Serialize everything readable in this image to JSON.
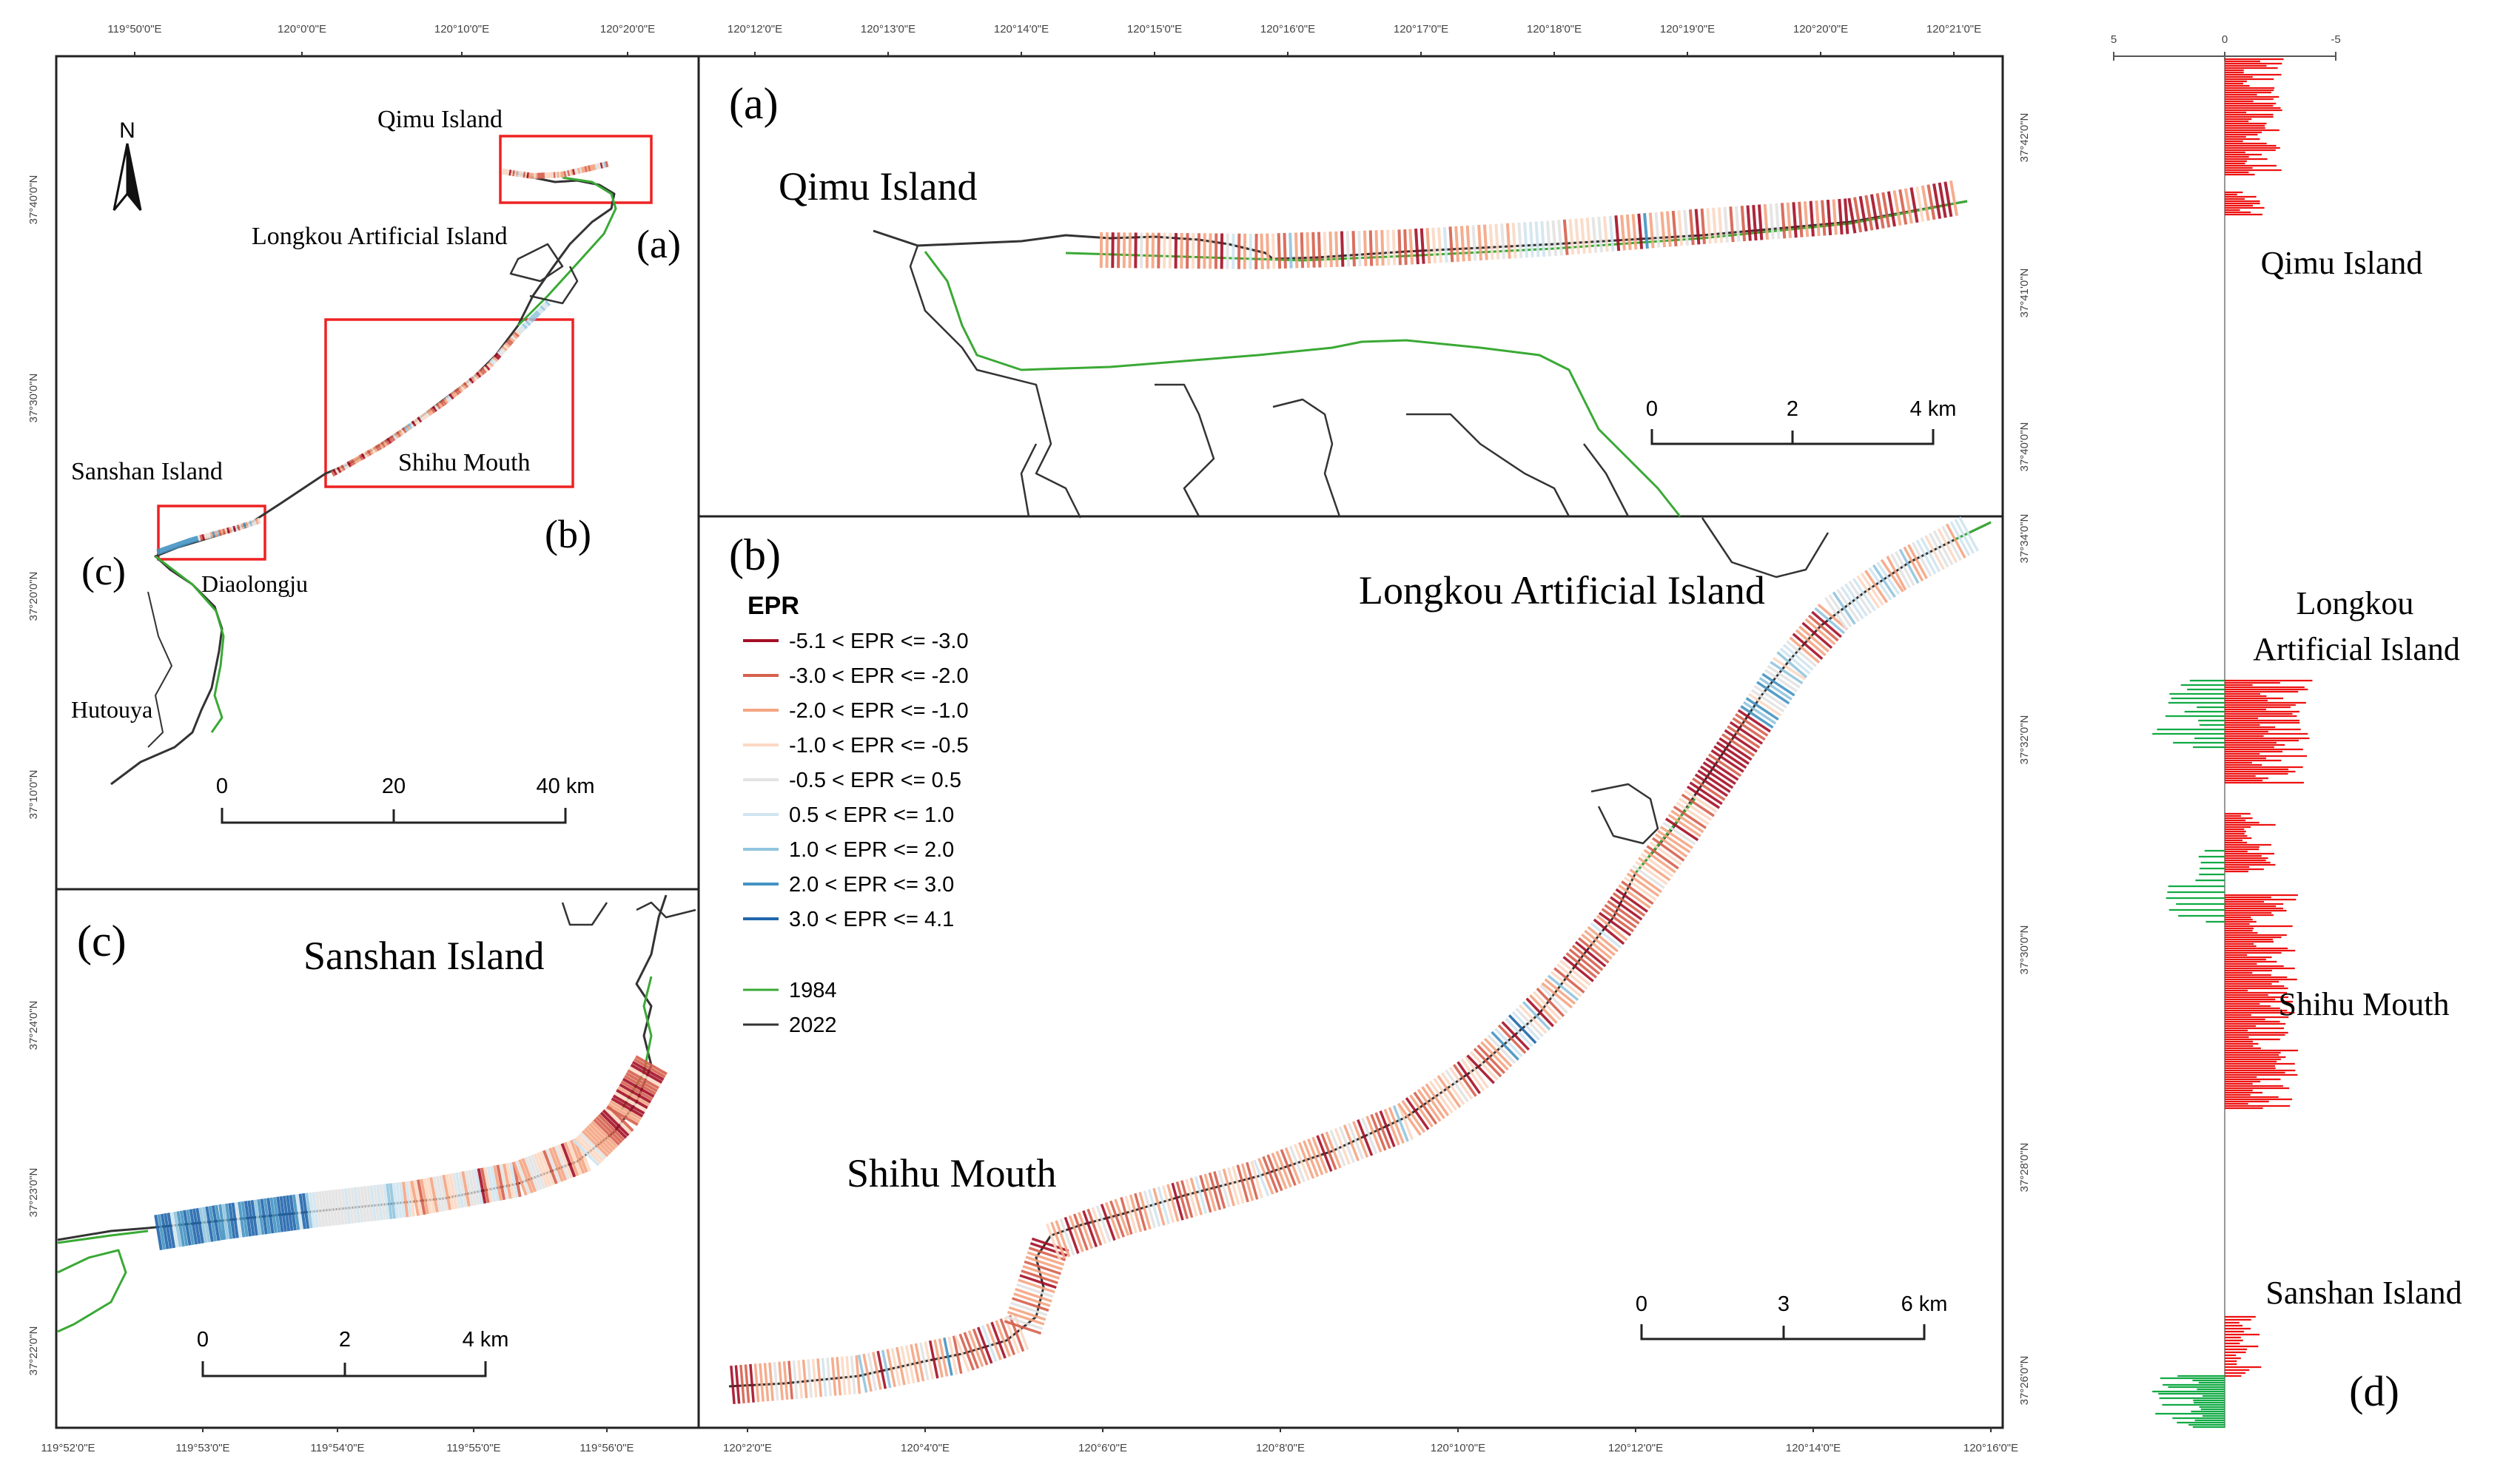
{
  "overview": {
    "panel_labels": {
      "a": "(a)",
      "b": "(b)",
      "c": "(c)"
    },
    "places": {
      "qimu": "Qimu Island",
      "longkou": "Longkou Artificial Island",
      "sanshan": "Sanshan Island",
      "shihu": "Shihu Mouth",
      "diaolongju": "Diaolongju",
      "hutouya": "Hutouya"
    },
    "north_label": "N",
    "scale": {
      "t0": "0",
      "t1": "20",
      "t2": "40 km"
    },
    "top_ticks": [
      "119°50'0\"E",
      "120°0'0\"E",
      "120°10'0\"E",
      "120°20'0\"E"
    ],
    "left_ticks": [
      "37°40'0\"N",
      "37°30'0\"N",
      "37°20'0\"N",
      "37°10'0\"N"
    ]
  },
  "panel_a": {
    "label": "(a)",
    "title": "Qimu Island",
    "scale": {
      "t0": "0",
      "t1": "2",
      "t2": "4 km"
    },
    "top_ticks": [
      "120°12'0\"E",
      "120°13'0\"E",
      "120°14'0\"E",
      "120°15'0\"E",
      "120°16'0\"E",
      "120°17'0\"E",
      "120°18'0\"E",
      "120°19'0\"E",
      "120°20'0\"E",
      "120°21'0\"E"
    ],
    "right_ticks": [
      "37°42'0\"N",
      "37°41'0\"N",
      "37°40'0\"N"
    ]
  },
  "panel_b": {
    "label": "(b)",
    "title_longkou": "Longkou Artificial Island",
    "title_shihu": "Shihu Mouth",
    "scale": {
      "t0": "0",
      "t1": "3",
      "t2": "6 km"
    },
    "bottom_ticks": [
      "120°2'0\"E",
      "120°4'0\"E",
      "120°6'0\"E",
      "120°8'0\"E",
      "120°10'0\"E",
      "120°12'0\"E",
      "120°14'0\"E",
      "120°16'0\"E"
    ],
    "right_ticks": [
      "37°34'0\"N",
      "37°32'0\"N",
      "37°30'0\"N",
      "37°28'0\"N",
      "37°26'0\"N"
    ]
  },
  "panel_c": {
    "label": "(c)",
    "title": "Sanshan Island",
    "scale": {
      "t0": "0",
      "t1": "2",
      "t2": "4 km"
    },
    "bottom_ticks": [
      "119°52'0\"E",
      "119°53'0\"E",
      "119°54'0\"E",
      "119°55'0\"E",
      "119°56'0\"E"
    ],
    "left_ticks": [
      "37°24'0\"N",
      "37°23'0\"N",
      "37°22'0\"N"
    ]
  },
  "legend": {
    "title": "EPR",
    "classes": [
      {
        "label": "-5.1 < EPR <= -3.0",
        "color": "#a50f26"
      },
      {
        "label": "-3.0 < EPR <= -2.0",
        "color": "#d6604d"
      },
      {
        "label": "-2.0 < EPR <= -1.0",
        "color": "#f4a582"
      },
      {
        "label": "-1.0 < EPR <= -0.5",
        "color": "#fbd9c4"
      },
      {
        "label": "-0.5 < EPR <= 0.5",
        "color": "#e3e3e3"
      },
      {
        "label": "0.5 < EPR <= 1.0",
        "color": "#d1e5f0"
      },
      {
        "label": "1.0 < EPR <= 2.0",
        "color": "#92c5de"
      },
      {
        "label": "2.0 < EPR <= 3.0",
        "color": "#4393c3"
      },
      {
        "label": "3.0 < EPR <= 4.1",
        "color": "#2166ac"
      }
    ],
    "lines": [
      {
        "label": "1984",
        "color": "#3aa935"
      },
      {
        "label": "2022",
        "color": "#333333"
      }
    ]
  },
  "panel_d": {
    "label": "(d)",
    "axis_ticks": [
      "5",
      "0",
      "-5"
    ],
    "places": {
      "qimu": "Qimu Island",
      "longkou_1": "Longkou",
      "longkou_2": "Artificial Island",
      "shihu": "Shihu Mouth",
      "sanshan": "Sanshan Island"
    },
    "erosion_color": "#ee1111",
    "accretion_color": "#11aa44"
  }
}
